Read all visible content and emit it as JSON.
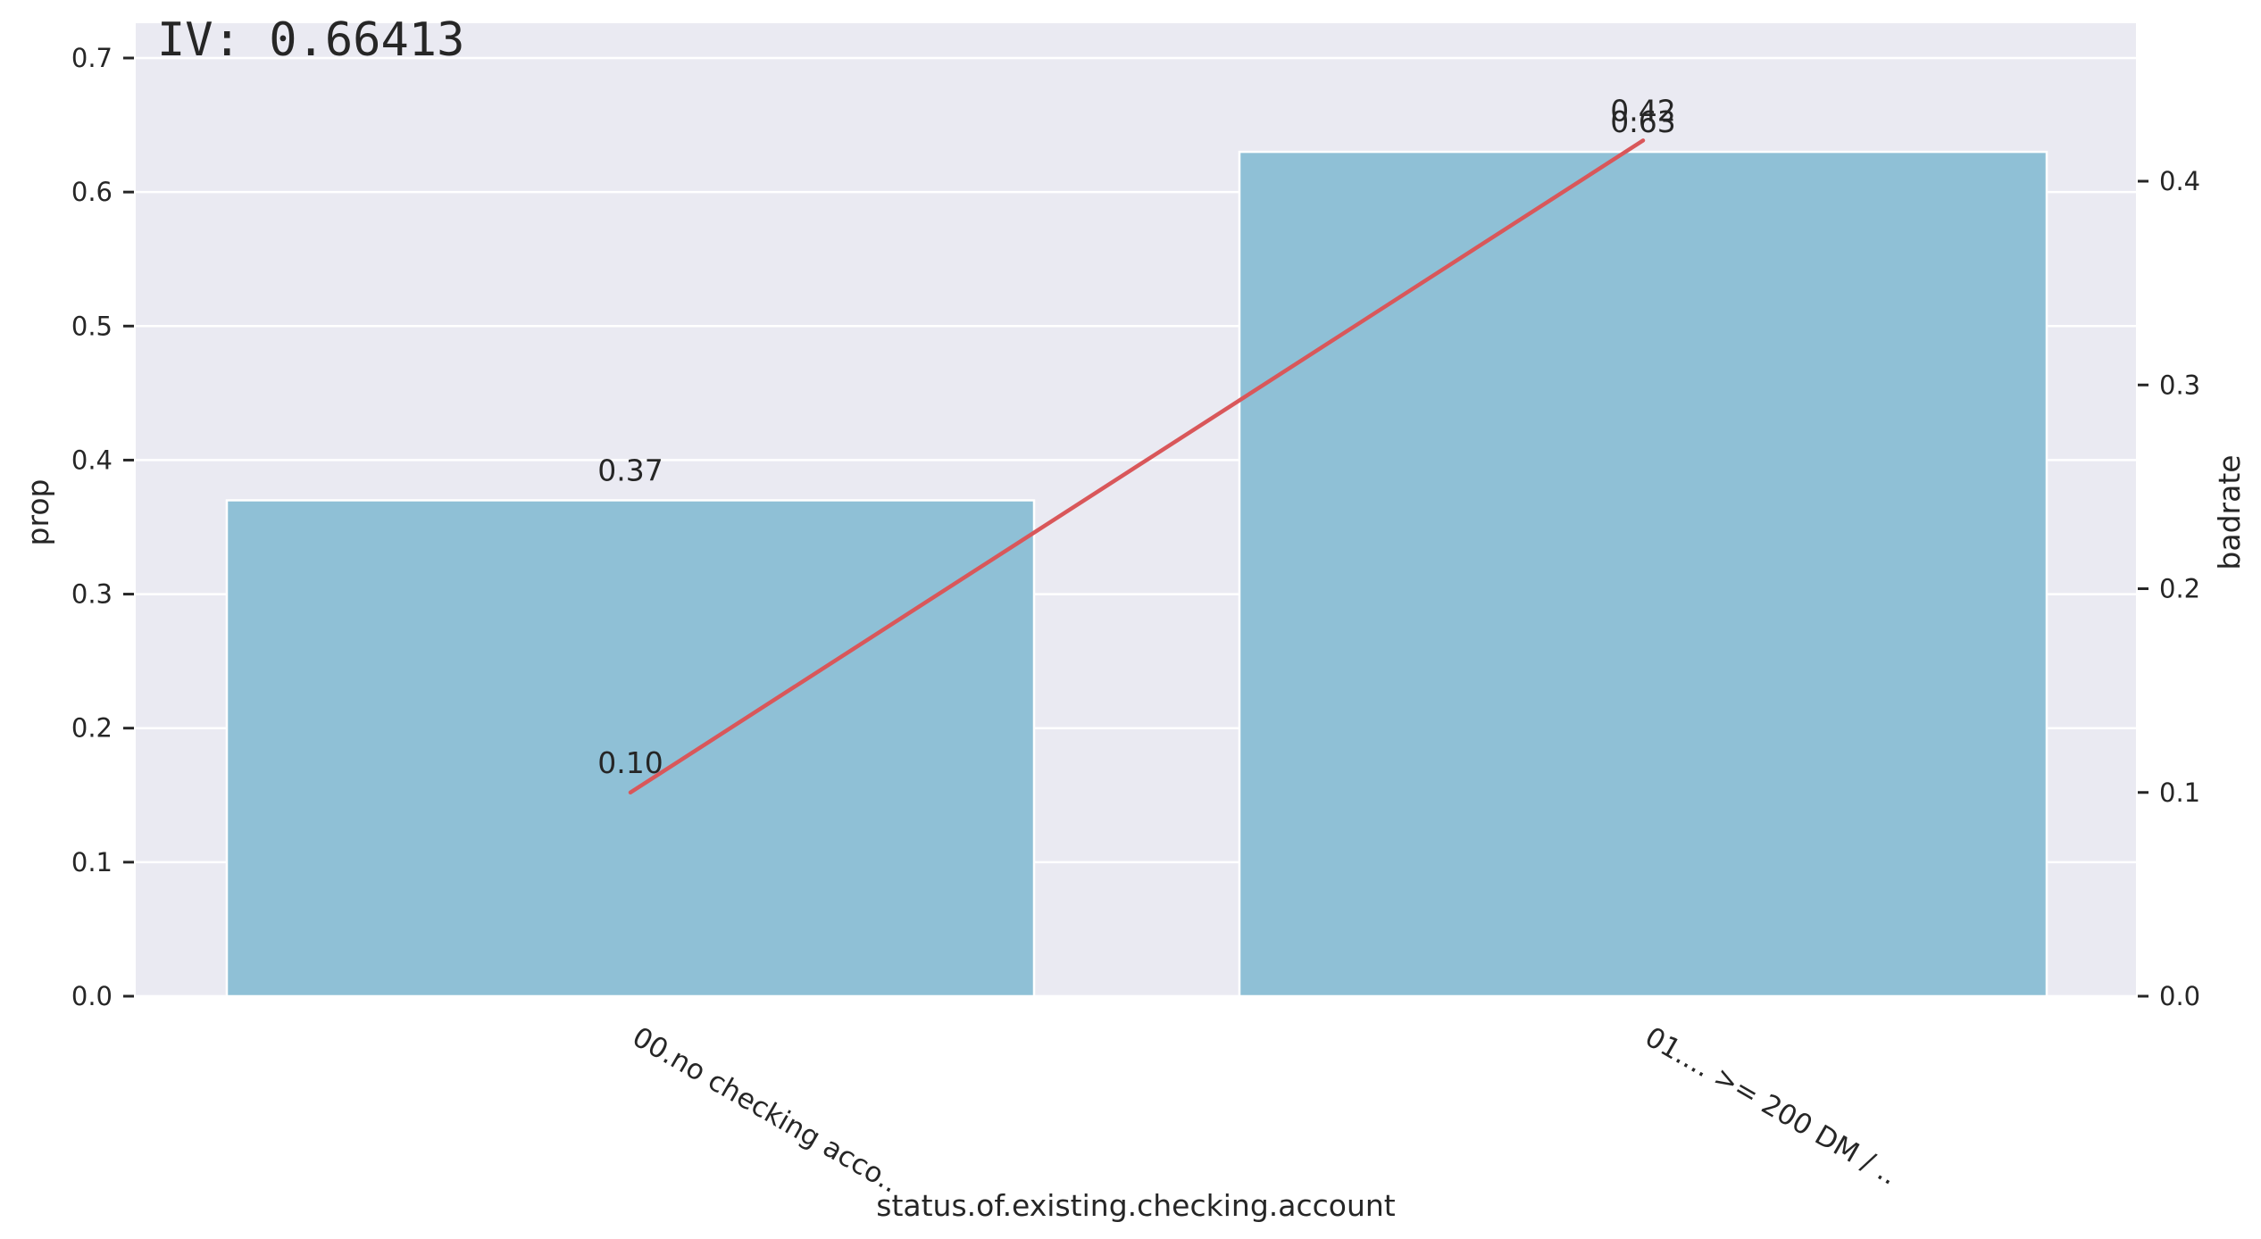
{
  "chart_data": {
    "type": "bar",
    "annotation": "IV: 0.66413",
    "categories": [
      "00.no checking acco..",
      "01.... >= 200 DM / .."
    ],
    "xlabel": "status.of.existing.checking.account",
    "ylabel": "prop",
    "y2label": "badrate",
    "ylim": [
      0,
      0.7
    ],
    "y2lim": [
      0,
      0.46
    ],
    "yticks": [
      "0.0",
      "0.1",
      "0.2",
      "0.3",
      "0.4",
      "0.5",
      "0.6",
      "0.7"
    ],
    "y2ticks": [
      "0.0",
      "0.1",
      "0.2",
      "0.3",
      "0.4"
    ],
    "grid": true,
    "series": [
      {
        "name": "prop",
        "type": "bar",
        "axis": "left",
        "color": "#8fc0d6",
        "values": [
          0.37,
          0.63
        ],
        "labels": [
          "0.37",
          "0.63"
        ]
      },
      {
        "name": "badrate",
        "type": "line",
        "axis": "right",
        "color": "#d9575a",
        "values": [
          0.1,
          0.42
        ],
        "labels": [
          "0.10",
          "0.42"
        ]
      }
    ],
    "background_color": "#eaeaf2",
    "grid_color": "#ffffff"
  }
}
